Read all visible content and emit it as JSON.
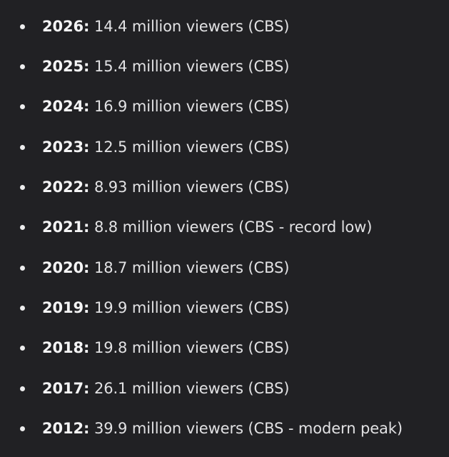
{
  "items": [
    {
      "year": "2026:",
      "text": "14.4 million viewers (CBS)"
    },
    {
      "year": "2025:",
      "text": "15.4 million viewers (CBS)"
    },
    {
      "year": "2024:",
      "text": "16.9 million viewers (CBS)"
    },
    {
      "year": "2023:",
      "text": "12.5 million viewers (CBS)"
    },
    {
      "year": "2022:",
      "text": "8.93 million viewers (CBS)"
    },
    {
      "year": "2021:",
      "text": "8.8 million viewers (CBS - record low)"
    },
    {
      "year": "2020:",
      "text": "18.7 million viewers (CBS)"
    },
    {
      "year": "2019:",
      "text": "19.9 million viewers (CBS)"
    },
    {
      "year": "2018:",
      "text": "19.8 million viewers (CBS)"
    },
    {
      "year": "2017:",
      "text": "26.1 million viewers (CBS)"
    },
    {
      "year": "2012:",
      "text": "39.9 million viewers (CBS - modern peak)"
    }
  ]
}
